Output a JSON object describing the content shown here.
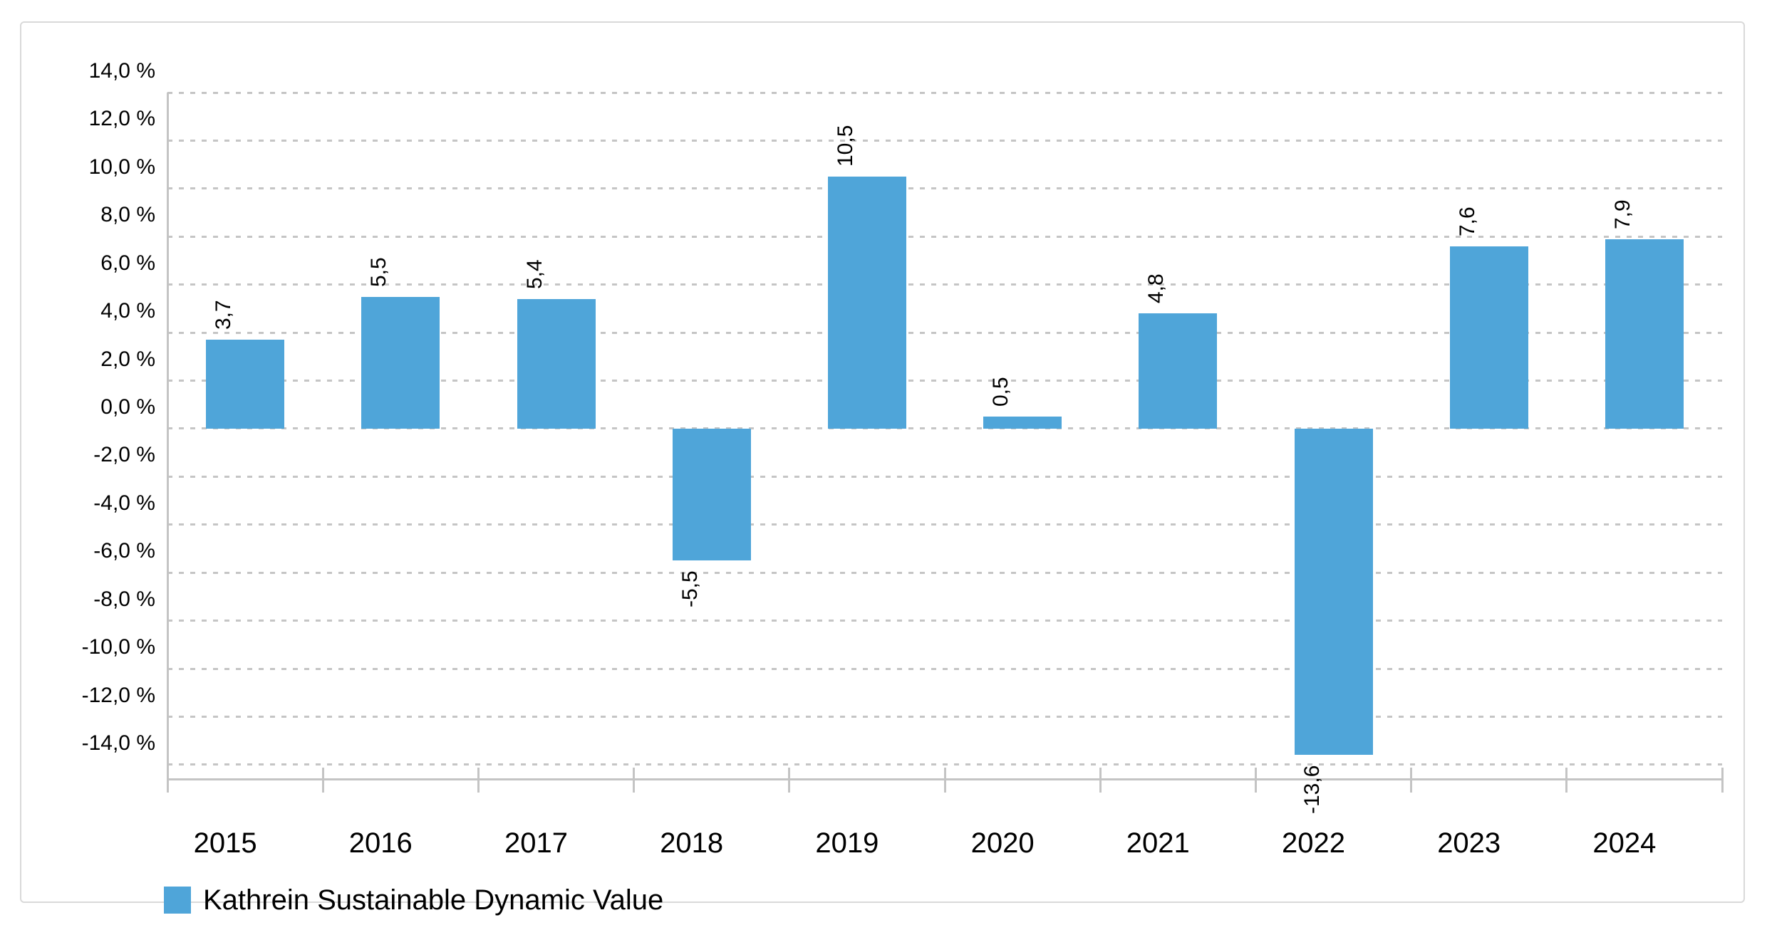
{
  "chart_data": {
    "type": "bar",
    "title": "",
    "categories": [
      "2015",
      "2016",
      "2017",
      "2018",
      "2019",
      "2020",
      "2021",
      "2022",
      "2023",
      "2024"
    ],
    "series": [
      {
        "name": "Kathrein Sustainable Dynamic Value",
        "values": [
          3.7,
          5.5,
          5.4,
          -5.5,
          10.5,
          0.5,
          4.8,
          -13.6,
          7.6,
          7.9
        ],
        "value_labels": [
          "3,7",
          "5,5",
          "5,4",
          "-5,5",
          "10,5",
          "0,5",
          "4,8",
          "-13,6",
          "7,6",
          "7,9"
        ],
        "color": "#4fa5d9"
      }
    ],
    "xlabel": "",
    "ylabel": "",
    "ylim": [
      -14.65,
      14
    ],
    "y_tick_step": 2,
    "y_tick_labels": [
      "14,0 %",
      "12,0 %",
      "10,0 %",
      "8,0 %",
      "6,0 %",
      "4,0 %",
      "2,0 %",
      "0,0 %",
      "-2,0 %",
      "-4,0 %",
      "-6,0 %",
      "-8,0 %",
      "-10,0 %",
      "-12,0 %",
      "-14,0 %"
    ],
    "y_tick_values": [
      14,
      12,
      10,
      8,
      6,
      4,
      2,
      0,
      -2,
      -4,
      -6,
      -8,
      -10,
      -12,
      -14
    ],
    "grid": "dashed-horizontal",
    "value_label_rotation_deg": -90,
    "decimal_separator": ",",
    "legend_position": "bottom-left"
  },
  "legend": {
    "label": "Kathrein Sustainable Dynamic Value"
  },
  "colors": {
    "bar": "#4fa5d9",
    "gridline": "#c5c5c5",
    "axis": "#c4c4c4",
    "card_border": "#d9d9d9",
    "text": "#000000"
  }
}
